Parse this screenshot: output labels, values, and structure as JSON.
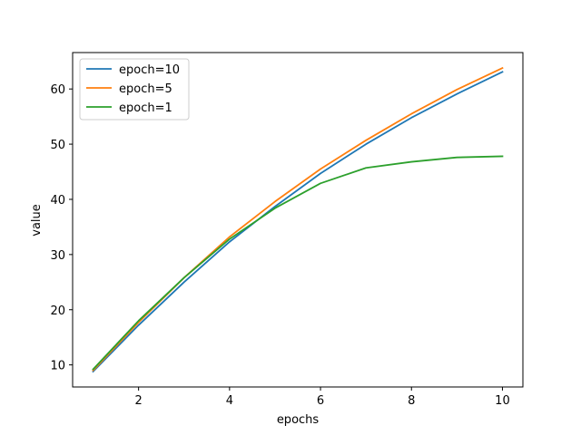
{
  "chart_data": {
    "type": "line",
    "title": "",
    "xlabel": "epochs",
    "ylabel": "value",
    "xlim": [
      0.55,
      10.45
    ],
    "ylim": [
      6.0,
      66.6
    ],
    "xticks": [
      2,
      4,
      6,
      8,
      10
    ],
    "yticks": [
      10,
      20,
      30,
      40,
      50,
      60
    ],
    "x": [
      1,
      2,
      3,
      4,
      5,
      6,
      7,
      8,
      9,
      10
    ],
    "legend_position": "upper-left",
    "grid": false,
    "series": [
      {
        "name": "epoch=10",
        "color": "#1f77b4",
        "values": [
          8.8,
          17.2,
          25.0,
          32.3,
          38.7,
          44.7,
          50.0,
          54.8,
          59.1,
          63.1
        ]
      },
      {
        "name": "epoch=5",
        "color": "#ff7f0e",
        "values": [
          9.0,
          17.7,
          25.8,
          33.2,
          39.6,
          45.5,
          50.7,
          55.5,
          59.9,
          63.8
        ]
      },
      {
        "name": "epoch=1",
        "color": "#2ca02c",
        "values": [
          9.2,
          18.0,
          25.8,
          32.8,
          38.4,
          42.9,
          45.7,
          46.8,
          47.6,
          47.8
        ]
      }
    ]
  }
}
